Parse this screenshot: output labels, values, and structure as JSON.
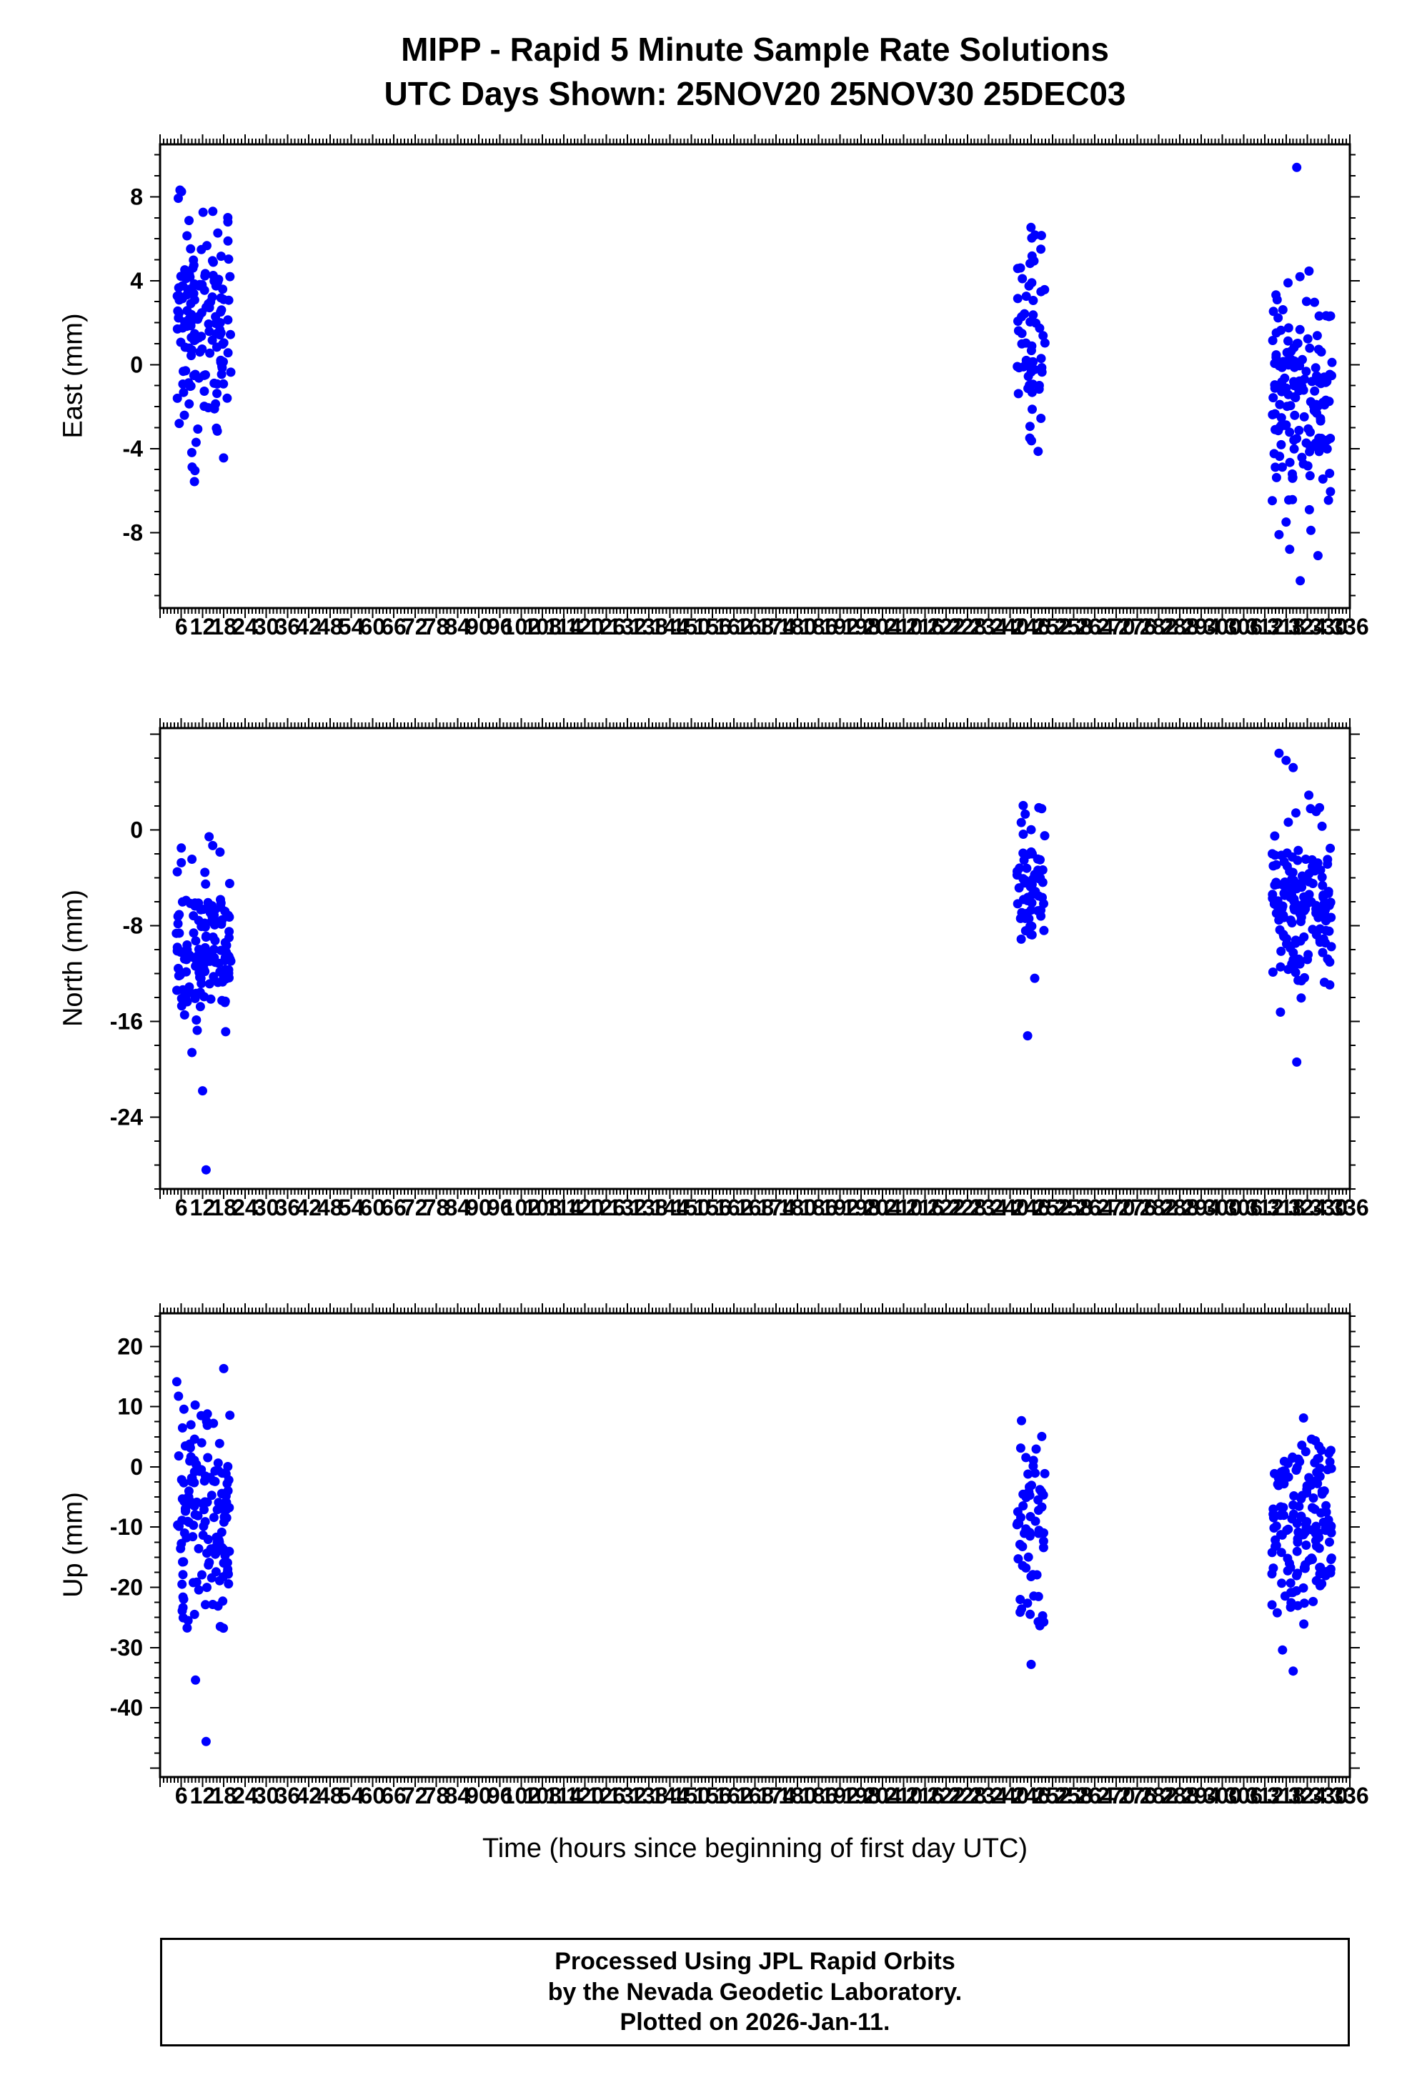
{
  "title": {
    "line1": "MIPP - Rapid 5 Minute Sample Rate Solutions",
    "line2": "UTC Days Shown:  25NOV20 25NOV30 25DEC03"
  },
  "x_axis": {
    "label": "Time (hours since beginning of first day UTC)",
    "min": 0,
    "max": 336,
    "minor_step": 1,
    "major_step": 6,
    "major_tick_labels": [
      6,
      12,
      18,
      24,
      30,
      36,
      42,
      48,
      54,
      60,
      66,
      72,
      78,
      84,
      90,
      96,
      102,
      108,
      114,
      120,
      126,
      132,
      138,
      144,
      150,
      156,
      162,
      168,
      174,
      180,
      186,
      192,
      198,
      204,
      210,
      216,
      222,
      228,
      234,
      240,
      246,
      252,
      258,
      264,
      270,
      276,
      282,
      288,
      294,
      300,
      306,
      312,
      318,
      324,
      330,
      336
    ]
  },
  "footer": {
    "line1": "Processed Using JPL Rapid Orbits",
    "line2": "by the Nevada Geodetic Laboratory.",
    "line3": "Plotted on 2026-Jan-11."
  },
  "style": {
    "point_color": "#0000ff",
    "axis_color": "#000000",
    "background": "#ffffff"
  },
  "chart_data": [
    {
      "type": "scatter",
      "ylabel": "East (mm)",
      "ylim": [
        -11.6,
        10.5
      ],
      "yticks": [
        -8,
        -4,
        0,
        4,
        8
      ],
      "y_minor_step": 1,
      "clusters": [
        {
          "x_range": [
            4.5,
            20
          ],
          "n": 150,
          "y_mean": 2.0,
          "y_std": 3.2,
          "y_clip": [
            -7.9,
            9.9
          ],
          "seed": 11,
          "outliers": []
        },
        {
          "x_range": [
            242,
            250
          ],
          "n": 60,
          "y_mean": 0.8,
          "y_std": 2.9,
          "y_clip": [
            -5.3,
            7.6
          ],
          "seed": 12,
          "outliers": []
        },
        {
          "x_range": [
            314,
            331
          ],
          "n": 150,
          "y_mean": -1.6,
          "y_std": 3.0,
          "y_clip": [
            -7.0,
            5.2
          ],
          "seed": 13,
          "outliers": [
            [
              321,
              9.4
            ],
            [
              316,
              -8.1
            ],
            [
              319,
              -8.8
            ],
            [
              322,
              -10.3
            ],
            [
              327,
              -9.1
            ],
            [
              325,
              -7.9
            ],
            [
              318,
              -7.5
            ]
          ]
        }
      ]
    },
    {
      "type": "scatter",
      "ylabel": "North (mm)",
      "ylim": [
        -30,
        8.5
      ],
      "yticks": [
        -24,
        -16,
        -8,
        0
      ],
      "y_minor_step": 2,
      "clusters": [
        {
          "x_range": [
            4.5,
            20
          ],
          "n": 150,
          "y_mean": -10.0,
          "y_std": 3.4,
          "y_clip": [
            -17.0,
            1.8
          ],
          "seed": 21,
          "outliers": [
            [
              9,
              -18.6
            ],
            [
              12,
              -21.8
            ],
            [
              13,
              -28.4
            ]
          ]
        },
        {
          "x_range": [
            242,
            250
          ],
          "n": 60,
          "y_mean": -4.5,
          "y_std": 3.3,
          "y_clip": [
            -10.5,
            4.2
          ],
          "seed": 22,
          "outliers": [
            [
              245,
              -17.2
            ],
            [
              247,
              -12.4
            ]
          ]
        },
        {
          "x_range": [
            314,
            331
          ],
          "n": 150,
          "y_mean": -6.5,
          "y_std": 3.6,
          "y_clip": [
            -15.5,
            4.0
          ],
          "seed": 23,
          "outliers": [
            [
              316,
              6.4
            ],
            [
              318,
              5.8
            ],
            [
              320,
              5.2
            ],
            [
              321,
              -19.4
            ]
          ]
        }
      ]
    },
    {
      "type": "scatter",
      "ylabel": "Up (mm)",
      "ylim": [
        -51.5,
        25.5
      ],
      "yticks": [
        -40,
        -30,
        -20,
        -10,
        0,
        10,
        20
      ],
      "y_minor_step": 2.5,
      "clusters": [
        {
          "x_range": [
            4.5,
            20
          ],
          "n": 150,
          "y_mean": -9.0,
          "y_std": 10.0,
          "y_clip": [
            -31.5,
            22.0
          ],
          "seed": 31,
          "outliers": [
            [
              10,
              -35.4
            ],
            [
              13,
              -45.6
            ]
          ]
        },
        {
          "x_range": [
            242,
            250
          ],
          "n": 60,
          "y_mean": -10.0,
          "y_std": 9.5,
          "y_clip": [
            -28.0,
            13.0
          ],
          "seed": 32,
          "outliers": [
            [
              246,
              -32.8
            ]
          ]
        },
        {
          "x_range": [
            314,
            331
          ],
          "n": 150,
          "y_mean": -9.5,
          "y_std": 9.0,
          "y_clip": [
            -24.5,
            11.0
          ],
          "seed": 33,
          "outliers": [
            [
              320,
              -33.9
            ],
            [
              317,
              -30.4
            ],
            [
              323,
              -26.1
            ]
          ]
        }
      ]
    }
  ]
}
